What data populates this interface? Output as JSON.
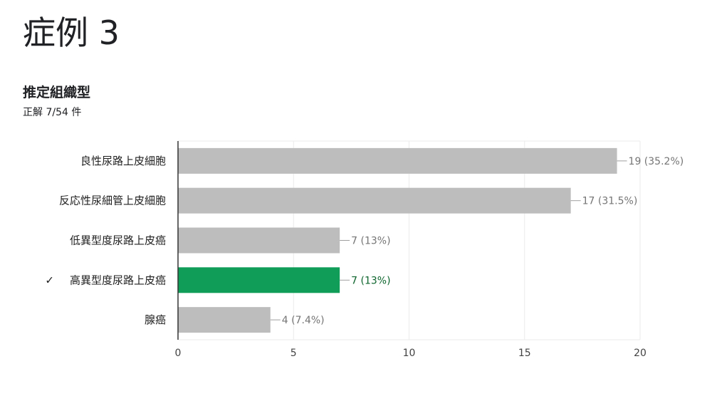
{
  "header": {
    "title": "症例 3"
  },
  "question": {
    "title": "推定組織型",
    "subtitle": "正解 7/54 件"
  },
  "chart_data": {
    "type": "bar",
    "orientation": "horizontal",
    "categories": [
      "良性尿路上皮細胞",
      "反応性尿細管上皮細胞",
      "低異型度尿路上皮癌",
      "高異型度尿路上皮癌",
      "腺癌"
    ],
    "values": [
      19,
      17,
      7,
      7,
      4
    ],
    "data_labels": [
      "19 (35.2%)",
      "17 (31.5%)",
      "7 (13%)",
      "7 (13%)",
      "4 (7.4%)"
    ],
    "correct_index": 3,
    "correct_marker": "✓",
    "xlim": [
      0,
      20
    ],
    "xticks": [
      0,
      5,
      10,
      15,
      20
    ],
    "grid": true,
    "colors": {
      "bar": "#bdbdbd",
      "correct_bar": "#0f9d58",
      "grid": "#ebebeb",
      "axis": "#333333",
      "leader": "#9e9e9e"
    }
  }
}
